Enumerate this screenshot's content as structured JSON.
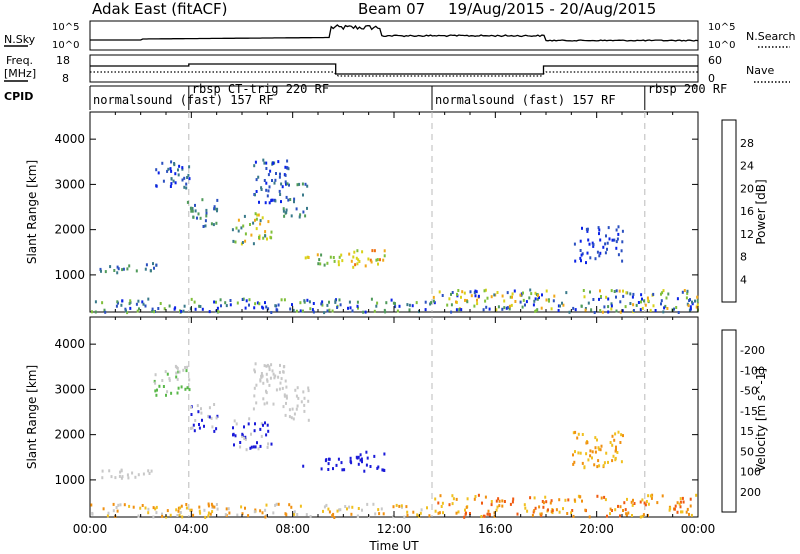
{
  "header": {
    "title": "Adak East (fitACF)",
    "beam": "Beam 07",
    "date_range": "19/Aug/2015 - 20/Aug/2015"
  },
  "sky_panel": {
    "left_label": "N.Sky",
    "right_label": "N.Search",
    "left_ticks": [
      "10^5",
      "10^0"
    ],
    "right_ticks": [
      "10^5",
      "10^0"
    ]
  },
  "freq_panel": {
    "left_label_1": "Freq.",
    "left_label_2": "[MHz]",
    "right_label": "Nave",
    "left_ticks": [
      "18",
      "8"
    ],
    "right_ticks": [
      "60",
      "0"
    ],
    "cpid_label": "CPID"
  },
  "cpid_segments": [
    {
      "label": "normalsound (fast) 157 RF",
      "start": 0.0,
      "end": 3.9
    },
    {
      "label": "rbsp CT-trig 220 RF",
      "start": 3.9,
      "end": 13.5
    },
    {
      "label": "normalsound (fast) 157 RF",
      "start": 13.5,
      "end": 21.9
    },
    {
      "label": "rbsp 200 RF",
      "start": 21.9,
      "end": 24.0
    }
  ],
  "chart_data": [
    {
      "type": "heatmap",
      "title": "Power",
      "xlabel": "",
      "ylabel": "Slant Range [km]",
      "xlim_hours": [
        0,
        24
      ],
      "ylim": [
        180,
        4600
      ],
      "yticks": [
        1000,
        2000,
        3000,
        4000
      ],
      "colorbar": {
        "label": "Power [dB]",
        "ticks": [
          "4",
          "8",
          "12",
          "16",
          "20",
          "24",
          "28"
        ],
        "colors": [
          "#0a22e6",
          "#2b50c0",
          "#3a7a8a",
          "#4f9a5a",
          "#7fbf3a",
          "#d8d21a",
          "#f0a818",
          "#f07010",
          "#e83810",
          "#d80a0a"
        ]
      },
      "echo_regions": [
        {
          "x0": 0.3,
          "x1": 2.6,
          "y0": 1050,
          "y1": 1300,
          "c": [
            1,
            2,
            3
          ]
        },
        {
          "x0": 2.5,
          "x1": 3.9,
          "y0": 2900,
          "y1": 3550,
          "c": [
            0,
            1,
            2
          ]
        },
        {
          "x0": 3.8,
          "x1": 5.0,
          "y0": 2100,
          "y1": 2700,
          "c": [
            1,
            2,
            3
          ]
        },
        {
          "x0": 5.6,
          "x1": 7.2,
          "y0": 1700,
          "y1": 2400,
          "c": [
            2,
            4,
            5,
            6
          ]
        },
        {
          "x0": 6.4,
          "x1": 7.8,
          "y0": 2600,
          "y1": 3600,
          "c": [
            0,
            1,
            2
          ]
        },
        {
          "x0": 7.6,
          "x1": 8.6,
          "y0": 2300,
          "y1": 3100,
          "c": [
            1,
            2,
            3
          ]
        },
        {
          "x0": 8.3,
          "x1": 10.2,
          "y0": 1250,
          "y1": 1500,
          "c": [
            3,
            4,
            5,
            6
          ]
        },
        {
          "x0": 10.2,
          "x1": 11.6,
          "y0": 1200,
          "y1": 1650,
          "c": [
            4,
            5,
            6,
            7
          ]
        },
        {
          "x0": 0.0,
          "x1": 13.5,
          "y0": 200,
          "y1": 500,
          "c": [
            0,
            1,
            2,
            3,
            4
          ]
        },
        {
          "x0": 13.5,
          "x1": 24.0,
          "y0": 200,
          "y1": 700,
          "c": [
            0,
            1,
            2,
            3,
            4,
            5,
            6
          ]
        },
        {
          "x0": 19.0,
          "x1": 21.0,
          "y0": 1300,
          "y1": 2100,
          "c": [
            0,
            1
          ]
        }
      ]
    },
    {
      "type": "heatmap",
      "title": "Velocity",
      "xlabel": "Time UT",
      "ylabel": "Slant Range [km]",
      "xlim_hours": [
        0,
        24
      ],
      "ylim": [
        180,
        4600
      ],
      "yticks": [
        1000,
        2000,
        3000,
        4000
      ],
      "xticks": [
        "00:00",
        "04:00",
        "08:00",
        "12:00",
        "16:00",
        "20:00",
        "00:00"
      ],
      "colorbar": {
        "label": "Velocity [m s^-1]",
        "ticks": [
          "200",
          "100",
          "50",
          "15",
          "-15",
          "-50",
          "-100",
          "-200"
        ],
        "colors": [
          "#1a1ad8",
          "#2a58c8",
          "#3a8a6a",
          "#5ab84a",
          "#8ad83a",
          "#c8c8c8",
          "#f0c020",
          "#f09010",
          "#f05a10",
          "#e82a10",
          "#d00a0a"
        ]
      },
      "echo_regions": [
        {
          "x0": 0.3,
          "x1": 2.6,
          "y0": 1050,
          "y1": 1300,
          "c": [
            5
          ]
        },
        {
          "x0": 2.5,
          "x1": 3.9,
          "y0": 2900,
          "y1": 3550,
          "c": [
            3,
            5
          ]
        },
        {
          "x0": 3.8,
          "x1": 5.0,
          "y0": 2100,
          "y1": 2700,
          "c": [
            0,
            5
          ]
        },
        {
          "x0": 5.6,
          "x1": 7.2,
          "y0": 1700,
          "y1": 2400,
          "c": [
            0,
            5
          ]
        },
        {
          "x0": 6.4,
          "x1": 7.8,
          "y0": 2600,
          "y1": 3600,
          "c": [
            5
          ]
        },
        {
          "x0": 7.6,
          "x1": 8.6,
          "y0": 2300,
          "y1": 3100,
          "c": [
            5
          ]
        },
        {
          "x0": 8.3,
          "x1": 10.2,
          "y0": 1250,
          "y1": 1500,
          "c": [
            0
          ]
        },
        {
          "x0": 10.2,
          "x1": 11.6,
          "y0": 1200,
          "y1": 1650,
          "c": [
            0
          ]
        },
        {
          "x0": 0.0,
          "x1": 13.5,
          "y0": 200,
          "y1": 500,
          "c": [
            5,
            6,
            7
          ]
        },
        {
          "x0": 13.5,
          "x1": 24.0,
          "y0": 200,
          "y1": 700,
          "c": [
            6,
            7,
            8
          ]
        },
        {
          "x0": 19.0,
          "x1": 21.0,
          "y0": 1300,
          "y1": 2100,
          "c": [
            6,
            7
          ]
        }
      ]
    }
  ]
}
